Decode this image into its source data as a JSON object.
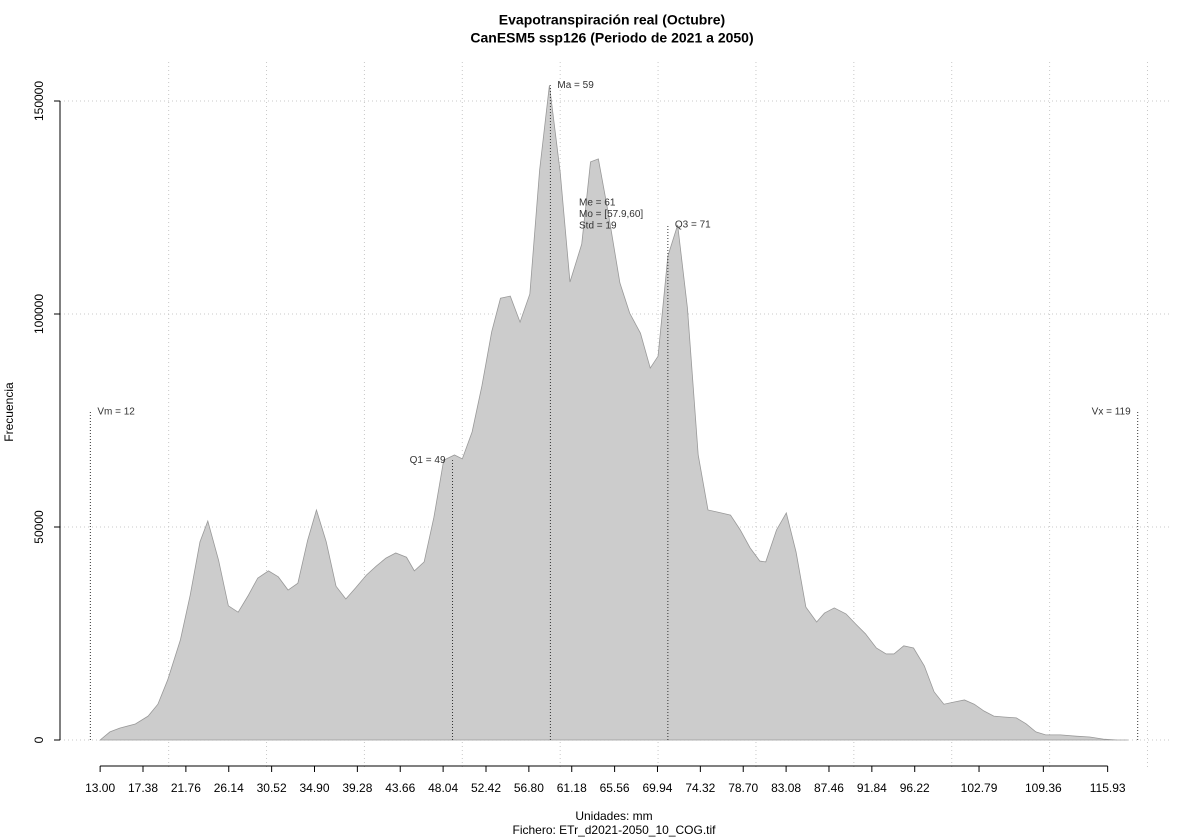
{
  "chart_data": {
    "type": "area",
    "title": "Evapotranspiración real (Octubre)",
    "subtitle": "CanESM5 ssp126 (Periodo de 2021 a 2050)",
    "x_label": "Unidades: mm",
    "footer": "Fichero: ETr_d2021-2050_10_COG.tif",
    "y_label": "Frecuencia",
    "color": "#cccccc",
    "line_color": "#999999",
    "x": [
      13.0,
      14.0,
      15.0,
      16.6,
      17.9,
      18.9,
      19.9,
      21.2,
      22.2,
      23.2,
      24.0,
      25.1,
      26.1,
      27.1,
      28.1,
      29.1,
      30.2,
      31.2,
      32.2,
      33.2,
      34.2,
      35.1,
      36.1,
      37.1,
      38.1,
      39.1,
      40.2,
      41.2,
      42.2,
      43.2,
      44.3,
      45.1,
      46.1,
      47.1,
      48.1,
      49.2,
      50.0,
      51.0,
      52.0,
      53.0,
      53.9,
      54.9,
      55.9,
      56.9,
      57.9,
      58.9,
      60.0,
      61.0,
      62.2,
      63.1,
      63.9,
      64.9,
      66.1,
      67.1,
      68.2,
      69.2,
      70.0,
      71.0,
      72.0,
      73.0,
      74.1,
      75.1,
      76.1,
      77.4,
      78.4,
      79.4,
      80.4,
      81.0,
      82.1,
      83.1,
      84.1,
      85.1,
      86.2,
      87.0,
      88.0,
      89.2,
      90.2,
      91.2,
      92.3,
      93.3,
      94.1,
      95.1,
      96.1,
      97.2,
      98.2,
      99.2,
      100.2,
      101.3,
      102.3,
      103.3,
      104.3,
      105.3,
      106.6,
      107.6,
      108.6,
      109.6,
      111.1,
      112.7,
      114.1,
      115.5,
      116.9,
      118.0
    ],
    "values": [
      0,
      1900,
      2800,
      3750,
      5600,
      8400,
      14100,
      23500,
      34000,
      46500,
      51400,
      42200,
      31500,
      30000,
      33800,
      38000,
      39700,
      38300,
      35200,
      36800,
      46900,
      54000,
      46500,
      36100,
      33100,
      35700,
      38700,
      40800,
      42700,
      43900,
      42900,
      39700,
      41800,
      52300,
      65700,
      66900,
      66000,
      72300,
      83100,
      95800,
      103700,
      104200,
      98100,
      104700,
      133800,
      153700,
      133300,
      107500,
      116400,
      135700,
      136400,
      123900,
      107300,
      100200,
      95500,
      87300,
      90100,
      113600,
      120900,
      101400,
      66900,
      54000,
      53500,
      52800,
      49300,
      45100,
      42000,
      41800,
      49300,
      53300,
      44100,
      31200,
      27700,
      29800,
      31000,
      29600,
      27200,
      24900,
      21600,
      20200,
      20200,
      22100,
      21600,
      17400,
      11300,
      8400,
      8900,
      9400,
      8400,
      6800,
      5600,
      5400,
      5200,
      3800,
      1900,
      1200,
      1200,
      900,
      700,
      200,
      0,
      0
    ],
    "xlim": [
      8.9,
      122.3
    ],
    "ylim": [
      0,
      150000
    ],
    "yticks": [
      0,
      50000,
      100000,
      150000
    ],
    "xticks": [
      {
        "value": 13.0,
        "label": "13.00"
      },
      17.38,
      21.76,
      26.14,
      30.52,
      {
        "value": 34.9,
        "label": "34.90"
      },
      39.28,
      43.66,
      48.04,
      52.42,
      {
        "value": 56.8,
        "label": "56.80"
      },
      61.18,
      65.56,
      69.94,
      74.32,
      {
        "value": 78.7,
        "label": "78.70"
      },
      83.08,
      87.46,
      91.84,
      96.22,
      102.79,
      109.36,
      115.93
    ],
    "xgrid": [
      20,
      30,
      40,
      50,
      60,
      70,
      80,
      90,
      100,
      110,
      120
    ],
    "grid": true,
    "annotations": [
      {
        "label": "Vm = 12",
        "x": 12,
        "y": 77000
      },
      {
        "label": "Q1 = 49",
        "x": 49,
        "y": 65700
      },
      {
        "label": "Ma = 59",
        "x": 59,
        "y": 153700
      },
      {
        "label": "Q3 = 71",
        "x": 71,
        "y": 120900
      },
      {
        "label": "Vx = 119",
        "x": 119,
        "y": 77000
      }
    ],
    "stats": [
      "Me = 61",
      "Mo = [57.9,60]",
      "Std = 19"
    ]
  }
}
